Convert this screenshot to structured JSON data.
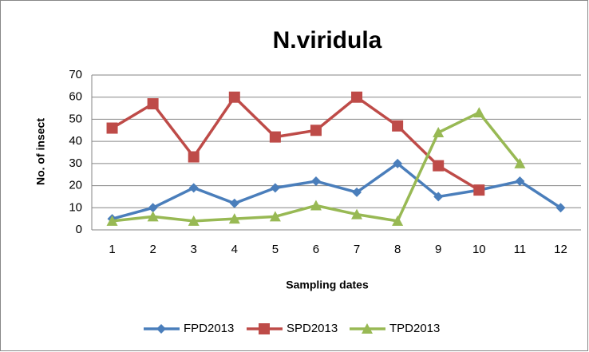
{
  "chart_data": {
    "type": "line",
    "title": "N.viridula",
    "x_label": "Sampling dates",
    "y_label": "No. of insect",
    "categories": [
      "1",
      "2",
      "3",
      "4",
      "5",
      "6",
      "7",
      "8",
      "9",
      "10",
      "11",
      "12"
    ],
    "series": [
      {
        "name": "FPD2013",
        "color": "#4a7ebb",
        "marker": "diamond",
        "values": [
          5,
          10,
          19,
          12,
          19,
          22,
          17,
          30,
          15,
          18,
          22,
          10
        ]
      },
      {
        "name": "SPD2013",
        "color": "#be4b48",
        "marker": "square",
        "values": [
          46,
          57,
          33,
          60,
          42,
          45,
          60,
          47,
          29,
          18,
          null,
          null
        ]
      },
      {
        "name": "TPD2013",
        "color": "#98b954",
        "marker": "triangle",
        "values": [
          4,
          6,
          4,
          5,
          6,
          11,
          7,
          4,
          44,
          53,
          30,
          null
        ]
      }
    ],
    "ylim": [
      0,
      70
    ],
    "yticks": [
      0,
      10,
      20,
      30,
      40,
      50,
      60,
      70
    ],
    "grid": true,
    "legend": "bottom"
  }
}
